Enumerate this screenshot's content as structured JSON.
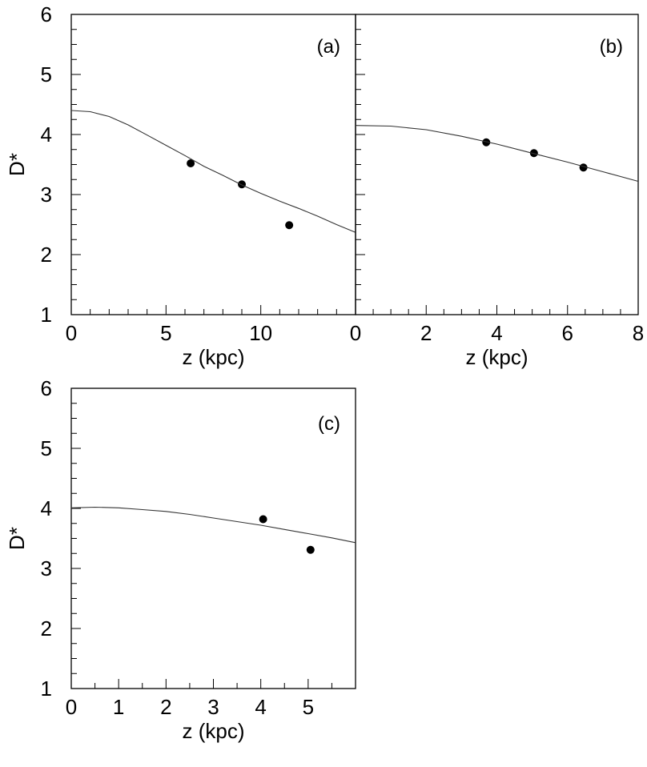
{
  "chart_data": [
    {
      "type": "scatter",
      "panel_label": "(a)",
      "xlabel": "z (kpc)",
      "ylabel": "D*",
      "xlim": [
        0,
        15
      ],
      "ylim": [
        1,
        6
      ],
      "x_ticks": [
        0,
        5,
        10
      ],
      "x_tick_labels": [
        "0",
        "5",
        "10"
      ],
      "y_ticks": [
        1,
        2,
        3,
        4,
        5,
        6
      ],
      "y_tick_labels": [
        "1",
        "2",
        "3",
        "4",
        "5",
        "6"
      ],
      "series": [
        {
          "kind": "points",
          "x": [
            6.3,
            9.0,
            11.5
          ],
          "y": [
            3.52,
            3.17,
            2.49
          ]
        },
        {
          "kind": "line",
          "x": [
            0,
            1,
            2,
            3,
            4,
            5,
            6,
            7,
            8,
            9,
            10,
            11,
            12,
            13,
            14,
            15
          ],
          "y": [
            4.4,
            4.38,
            4.3,
            4.16,
            3.99,
            3.82,
            3.65,
            3.47,
            3.32,
            3.16,
            3.02,
            2.89,
            2.77,
            2.64,
            2.5,
            2.37
          ]
        }
      ]
    },
    {
      "type": "scatter",
      "panel_label": "(b)",
      "xlabel": "z (kpc)",
      "ylabel": "",
      "xlim": [
        0,
        8
      ],
      "ylim": [
        1,
        6
      ],
      "x_ticks": [
        0,
        2,
        4,
        6,
        8
      ],
      "x_tick_labels": [
        "0",
        "2",
        "4",
        "6",
        "8"
      ],
      "y_ticks": [
        1,
        2,
        3,
        4,
        5,
        6
      ],
      "y_tick_labels": [],
      "series": [
        {
          "kind": "points",
          "x": [
            3.7,
            5.05,
            6.45
          ],
          "y": [
            3.87,
            3.69,
            3.45
          ]
        },
        {
          "kind": "line",
          "x": [
            0,
            1,
            2,
            3,
            4,
            5,
            6,
            7,
            8
          ],
          "y": [
            4.15,
            4.14,
            4.08,
            3.97,
            3.84,
            3.69,
            3.54,
            3.38,
            3.22
          ]
        }
      ]
    },
    {
      "type": "scatter",
      "panel_label": "(c)",
      "xlabel": "z (kpc)",
      "ylabel": "D*",
      "xlim": [
        0,
        6
      ],
      "ylim": [
        1,
        6
      ],
      "x_ticks": [
        0,
        1,
        2,
        3,
        4,
        5
      ],
      "x_tick_labels": [
        "0",
        "1",
        "2",
        "3",
        "4",
        "5"
      ],
      "y_ticks": [
        1,
        2,
        3,
        4,
        5,
        6
      ],
      "y_tick_labels": [
        "1",
        "2",
        "3",
        "4",
        "5",
        "6"
      ],
      "series": [
        {
          "kind": "points",
          "x": [
            4.05,
            5.05
          ],
          "y": [
            3.82,
            3.31
          ]
        },
        {
          "kind": "line",
          "x": [
            0,
            0.5,
            1,
            1.5,
            2,
            2.5,
            3,
            3.5,
            4,
            4.5,
            5,
            5.5,
            6
          ],
          "y": [
            4.01,
            4.02,
            4.01,
            3.98,
            3.95,
            3.9,
            3.84,
            3.78,
            3.72,
            3.65,
            3.58,
            3.51,
            3.43
          ]
        }
      ]
    }
  ]
}
